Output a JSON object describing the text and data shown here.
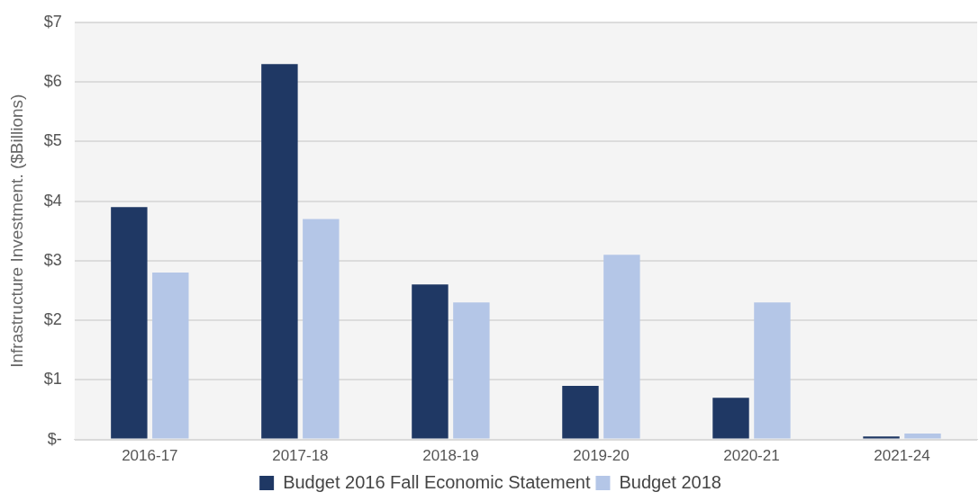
{
  "chart_data": {
    "type": "bar",
    "ylabel": "Infrastructure Investment. ($Billions)",
    "categories": [
      "2016-17",
      "2017-18",
      "2018-19",
      "2019-20",
      "2020-21",
      "2021-24"
    ],
    "series": [
      {
        "name": "Budget 2016 Fall Economic Statement",
        "color": "#1f3864",
        "values": [
          3.9,
          6.3,
          2.6,
          0.9,
          0.7,
          0.05
        ]
      },
      {
        "name": "Budget 2018",
        "color": "#b4c6e7",
        "values": [
          2.8,
          3.7,
          2.3,
          3.1,
          2.3,
          0.1
        ]
      }
    ],
    "ylim": [
      0,
      7
    ],
    "yticks": [
      {
        "value": 0,
        "label": "$-"
      },
      {
        "value": 1,
        "label": "$1"
      },
      {
        "value": 2,
        "label": "$2"
      },
      {
        "value": 3,
        "label": "$3"
      },
      {
        "value": 4,
        "label": "$4"
      },
      {
        "value": 5,
        "label": "$5"
      },
      {
        "value": 6,
        "label": "$6"
      },
      {
        "value": 7,
        "label": "$7"
      }
    ],
    "grid": "y",
    "legend": "bottom"
  }
}
